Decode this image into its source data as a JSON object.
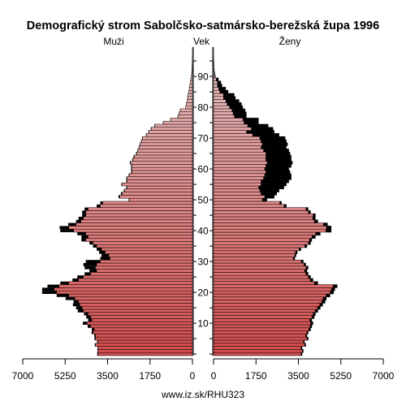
{
  "chart_data": {
    "type": "population-pyramid",
    "title": "Demografický strom Sabolčsko-satmársko-berežská župa 1996",
    "left_label": "Muži",
    "center_label": "Vek",
    "right_label": "Ženy",
    "source": "www.iz.sk/RHU323",
    "x_ticks": [
      "7000",
      "5250",
      "3500",
      "1750",
      "0"
    ],
    "x_ticks_right": [
      "0",
      "1750",
      "3500",
      "5250",
      "7000"
    ],
    "xlim": [
      0,
      7000
    ],
    "age_ticks": [
      10,
      20,
      30,
      40,
      50,
      60,
      70,
      80,
      90
    ],
    "ages": [
      0,
      1,
      2,
      3,
      4,
      5,
      6,
      7,
      8,
      9,
      10,
      11,
      12,
      13,
      14,
      15,
      16,
      17,
      18,
      19,
      20,
      21,
      22,
      23,
      24,
      25,
      26,
      27,
      28,
      29,
      30,
      31,
      32,
      33,
      34,
      35,
      36,
      37,
      38,
      39,
      40,
      41,
      42,
      43,
      44,
      45,
      46,
      47,
      48,
      49,
      50,
      51,
      52,
      53,
      54,
      55,
      56,
      57,
      58,
      59,
      60,
      61,
      62,
      63,
      64,
      65,
      66,
      67,
      68,
      69,
      70,
      71,
      72,
      73,
      74,
      75,
      76,
      77,
      78,
      79,
      80,
      81,
      82,
      83,
      84,
      85,
      86,
      87,
      88,
      89,
      90,
      91,
      92,
      93,
      94,
      95,
      96,
      97,
      98,
      99
    ],
    "male": [
      3900,
      3900,
      3900,
      4000,
      3900,
      4000,
      4000,
      4100,
      4050,
      4200,
      4350,
      4150,
      4200,
      4300,
      4500,
      4550,
      4650,
      4700,
      4850,
      5100,
      5600,
      5700,
      5500,
      5100,
      4700,
      4500,
      4200,
      3950,
      4000,
      3950,
      3800,
      3400,
      3450,
      3600,
      3750,
      3950,
      4100,
      4400,
      4300,
      4400,
      4900,
      5100,
      4800,
      4600,
      4500,
      4400,
      4400,
      4300,
      3800,
      3700,
      2600,
      3000,
      2900,
      2800,
      2700,
      2900,
      2700,
      2700,
      2600,
      2500,
      2500,
      2500,
      2550,
      2450,
      2400,
      2300,
      2250,
      2200,
      2150,
      2100,
      2050,
      1900,
      1800,
      1700,
      1550,
      1200,
      900,
      600,
      550,
      500,
      280,
      260,
      220,
      200,
      180,
      160,
      130,
      110,
      90,
      70,
      40,
      30,
      20,
      15,
      10,
      5,
      3,
      2,
      1,
      1
    ],
    "male_black": [
      30,
      20,
      20,
      30,
      30,
      40,
      50,
      60,
      100,
      120,
      170,
      150,
      180,
      170,
      230,
      250,
      280,
      200,
      380,
      500,
      600,
      500,
      480,
      350,
      250,
      250,
      250,
      300,
      450,
      550,
      600,
      400,
      300,
      250,
      200,
      150,
      150,
      180,
      280,
      350,
      550,
      380,
      320,
      200,
      200,
      150,
      150,
      150,
      150,
      100,
      30,
      50,
      50,
      30,
      30,
      30,
      30,
      30,
      30,
      30,
      30,
      30,
      30,
      30,
      30,
      30,
      20,
      20,
      20,
      20,
      20,
      20,
      20,
      20,
      20,
      15,
      10,
      10,
      10,
      10,
      5,
      5,
      5,
      5,
      5,
      5,
      5,
      5,
      5,
      5,
      5,
      5,
      5,
      5,
      5,
      5,
      3,
      2,
      1,
      1
    ],
    "female": [
      3650,
      3700,
      3650,
      3800,
      3750,
      3900,
      3850,
      3900,
      4000,
      4050,
      4100,
      4050,
      4150,
      4200,
      4300,
      4400,
      4500,
      4600,
      4650,
      4800,
      4950,
      5000,
      5100,
      4300,
      4100,
      4000,
      3900,
      3850,
      3900,
      3800,
      3700,
      3350,
      3400,
      3450,
      3600,
      3850,
      4000,
      4050,
      4200,
      4400,
      4850,
      4850,
      4700,
      4300,
      4200,
      4200,
      4000,
      3900,
      3000,
      2800,
      2200,
      2500,
      2600,
      2700,
      2900,
      3000,
      3100,
      3200,
      3200,
      3150,
      3100,
      3200,
      3250,
      3200,
      3200,
      3150,
      3100,
      3000,
      3050,
      3000,
      2950,
      2700,
      2500,
      2450,
      2250,
      1850,
      1850,
      1350,
      1350,
      1300,
      1200,
      1150,
      1050,
      900,
      850,
      600,
      500,
      350,
      300,
      200,
      70,
      50,
      30,
      20,
      15,
      10,
      5,
      3,
      2,
      1
    ],
    "female_black": [
      50,
      50,
      50,
      50,
      50,
      60,
      60,
      60,
      80,
      80,
      100,
      90,
      100,
      100,
      120,
      120,
      130,
      140,
      140,
      160,
      150,
      150,
      180,
      150,
      120,
      100,
      100,
      100,
      90,
      80,
      90,
      70,
      60,
      80,
      80,
      100,
      100,
      100,
      150,
      200,
      220,
      200,
      180,
      150,
      120,
      100,
      100,
      100,
      100,
      80,
      200,
      400,
      650,
      800,
      1050,
      1050,
      1150,
      1150,
      1100,
      1000,
      1000,
      1050,
      1050,
      1050,
      1050,
      1000,
      1050,
      1050,
      1050,
      1050,
      1050,
      1100,
      1150,
      900,
      850,
      600,
      650,
      500,
      550,
      550,
      550,
      600,
      550,
      500,
      450,
      350,
      300,
      200,
      150,
      100,
      30,
      20,
      10,
      5,
      5,
      3,
      2,
      1,
      1,
      0
    ],
    "colors": {
      "male_top": "#e8c4c4",
      "male_bottom": "#d34c4c",
      "female_top": "#e8c4c4",
      "female_bottom": "#d34c4c",
      "surplus": "#000000",
      "bar_stroke": "#000000"
    }
  }
}
